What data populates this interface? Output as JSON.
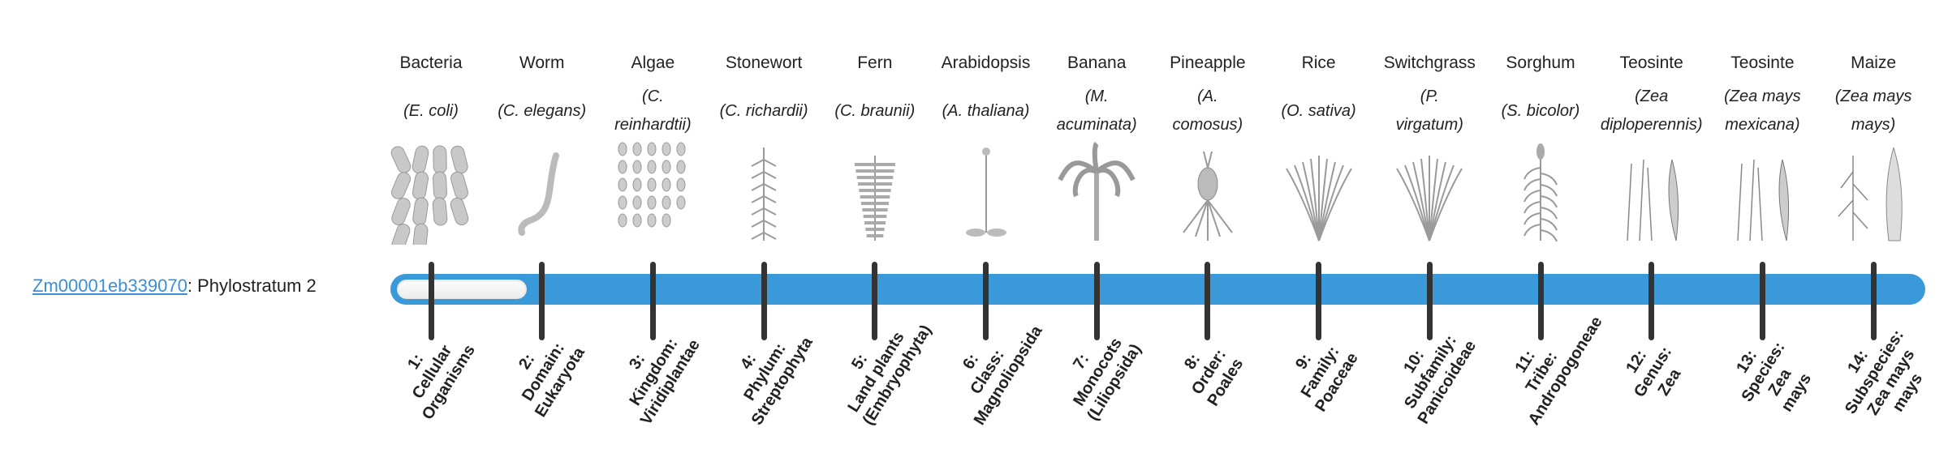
{
  "gene": {
    "id": "Zm00001eb339070",
    "suffix": ": Phylostratum 2",
    "phylostratum": 2
  },
  "colors": {
    "bar": "#3a9ad9",
    "link": "#3a8fd6",
    "tick": "#333333"
  },
  "organisms": [
    {
      "name": "Bacteria",
      "sci": [
        "(E. coli)"
      ],
      "icon": "bacteria-icon"
    },
    {
      "name": "Worm",
      "sci": [
        "(C. elegans)"
      ],
      "icon": "worm-icon"
    },
    {
      "name": "Algae",
      "sci": [
        "(C.",
        "reinhardtii)"
      ],
      "icon": "algae-icon"
    },
    {
      "name": "Stonewort",
      "sci": [
        "(C. richardii)"
      ],
      "icon": "stonewort-icon"
    },
    {
      "name": "Fern",
      "sci": [
        "(C. braunii)"
      ],
      "icon": "fern-icon"
    },
    {
      "name": "Arabidopsis",
      "sci": [
        "(A. thaliana)"
      ],
      "icon": "arabidopsis-icon"
    },
    {
      "name": "Banana",
      "sci": [
        "(M.",
        "acuminata)"
      ],
      "icon": "banana-icon"
    },
    {
      "name": "Pineapple",
      "sci": [
        "(A.",
        "comosus)"
      ],
      "icon": "pineapple-icon"
    },
    {
      "name": "Rice",
      "sci": [
        "(O. sativa)"
      ],
      "icon": "rice-icon"
    },
    {
      "name": "Switchgrass",
      "sci": [
        "(P.",
        "virgatum)"
      ],
      "icon": "switchgrass-icon"
    },
    {
      "name": "Sorghum",
      "sci": [
        "(S. bicolor)"
      ],
      "icon": "sorghum-icon"
    },
    {
      "name": "Teosinte",
      "sci": [
        "(Zea",
        "diploperennis)"
      ],
      "icon": "teosinte-icon"
    },
    {
      "name": "Teosinte",
      "sci": [
        "(Zea mays",
        "mexicana)"
      ],
      "icon": "teosinte-icon"
    },
    {
      "name": "Maize",
      "sci": [
        "(Zea mays",
        "mays)"
      ],
      "icon": "maize-icon"
    }
  ],
  "strata": [
    [
      "1:",
      "Cellular",
      "Organisms"
    ],
    [
      "2:",
      "Domain:",
      "Eukaryota"
    ],
    [
      "3:",
      "Kingdom:",
      "Viridiplantae"
    ],
    [
      "4:",
      "Phylum:",
      "Streptophyta"
    ],
    [
      "5:",
      "Land plants",
      "(Embryophyta)"
    ],
    [
      "6:",
      "Class:",
      "Magnoliopsida"
    ],
    [
      "7:",
      "Monocots",
      "(Liliopsida)"
    ],
    [
      "8:",
      "Order:",
      "Poales"
    ],
    [
      "9:",
      "Family:",
      "Poaceae"
    ],
    [
      "10:",
      "Subfamily:",
      "Panicoideae"
    ],
    [
      "11:",
      "Tribe:",
      "Andropogoneae"
    ],
    [
      "12:",
      "Genus:",
      "Zea"
    ],
    [
      "13:",
      "Species:",
      "Zea",
      "mays"
    ],
    [
      "14:",
      "Subspecies:",
      "Zea mays",
      "mays"
    ]
  ]
}
